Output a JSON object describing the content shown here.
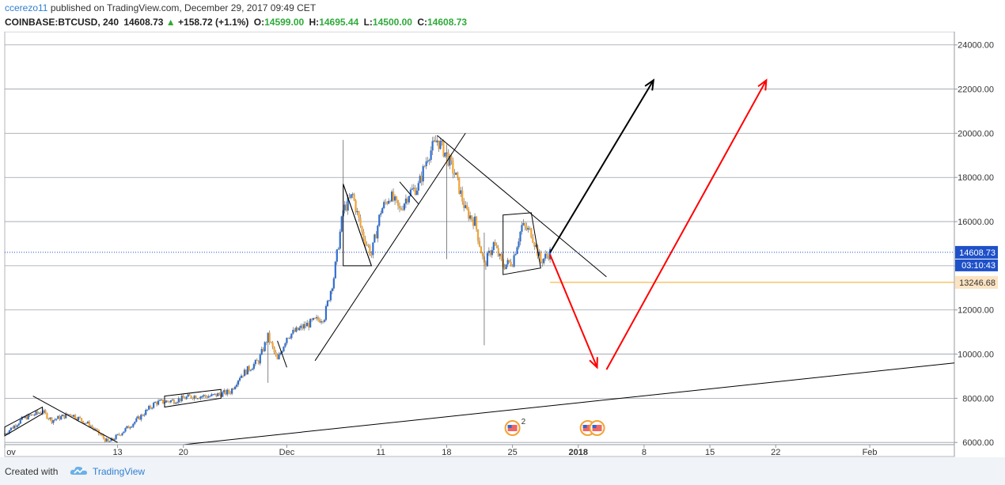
{
  "header": {
    "author": "ccerezo11",
    "published_text": "published on TradingView.com, December 29, 2017 09:49 CET",
    "symbol": "COINBASE:BTCUSD, 240",
    "last": "14608.73",
    "change": "+158.72 (+1.1%)",
    "open_label": "O:",
    "open": "14599.00",
    "high_label": "H:",
    "high": "14695.44",
    "low_label": "L:",
    "low": "14500.00",
    "close_label": "C:",
    "close": "14608.73"
  },
  "footer": {
    "created_with": "Created with",
    "brand": "TradingView"
  },
  "colors": {
    "up": "#2f6fd0",
    "down": "#f2a334",
    "accent": "#2f7fd3",
    "arrow_red": "#ff0000",
    "arrow_black": "#000000",
    "level": "#f5a623",
    "price_tag": "#1e50c8"
  },
  "chart_data": {
    "type": "candlestick",
    "x_axis": {
      "type": "date",
      "range": [
        "2017-11-01",
        "2018-02-10"
      ],
      "ticks": [
        {
          "date": "2017-11-01",
          "label": "ov"
        },
        {
          "date": "2017-11-13",
          "label": "13"
        },
        {
          "date": "2017-11-20",
          "label": "20"
        },
        {
          "date": "2017-12-01",
          "label": "Dec"
        },
        {
          "date": "2017-12-11",
          "label": "11"
        },
        {
          "date": "2017-12-18",
          "label": "18"
        },
        {
          "date": "2017-12-25",
          "label": "25"
        },
        {
          "date": "2018-01-01",
          "label": "2018"
        },
        {
          "date": "2018-01-08",
          "label": "8"
        },
        {
          "date": "2018-01-15",
          "label": "15"
        },
        {
          "date": "2018-01-22",
          "label": "22"
        },
        {
          "date": "2018-02-01",
          "label": "Feb"
        }
      ]
    },
    "y_axis": {
      "range": [
        5900,
        24600
      ],
      "ticks": [
        {
          "value": 6000,
          "label": "6000.00"
        },
        {
          "value": 8000,
          "label": "8000.00"
        },
        {
          "value": 10000,
          "label": "10000.00"
        },
        {
          "value": 12000,
          "label": "12000.00"
        },
        {
          "value": 14000,
          "label": "14000.00"
        },
        {
          "value": 16000,
          "label": "16000.00"
        },
        {
          "value": 18000,
          "label": "18000.00"
        },
        {
          "value": 20000,
          "label": "20000.00"
        },
        {
          "value": 22000,
          "label": "22000.00"
        },
        {
          "value": 24000,
          "label": "24000.00"
        }
      ],
      "grid": true
    },
    "price_path": [
      [
        "2017-11-01",
        6400
      ],
      [
        "2017-11-03",
        7100
      ],
      [
        "2017-11-05",
        7400
      ],
      [
        "2017-11-06",
        7000
      ],
      [
        "2017-11-08",
        7300
      ],
      [
        "2017-11-10",
        6800
      ],
      [
        "2017-11-12",
        6000
      ],
      [
        "2017-11-13",
        6300
      ],
      [
        "2017-11-15",
        7000
      ],
      [
        "2017-11-17",
        7800
      ],
      [
        "2017-11-19",
        7900
      ],
      [
        "2017-11-21",
        8100
      ],
      [
        "2017-11-23",
        8100
      ],
      [
        "2017-11-25",
        8300
      ],
      [
        "2017-11-26",
        9000
      ],
      [
        "2017-11-28",
        9700
      ],
      [
        "2017-11-29",
        10800
      ],
      [
        "2017-11-30",
        9700
      ],
      [
        "2017-12-01",
        10800
      ],
      [
        "2017-12-03",
        11300
      ],
      [
        "2017-12-05",
        11700
      ],
      [
        "2017-12-06",
        13500
      ],
      [
        "2017-12-07",
        16500
      ],
      [
        "2017-12-08",
        17200
      ],
      [
        "2017-12-09",
        15500
      ],
      [
        "2017-12-10",
        14500
      ],
      [
        "2017-12-11",
        16500
      ],
      [
        "2017-12-12",
        17200
      ],
      [
        "2017-12-13",
        16500
      ],
      [
        "2017-12-14",
        17300
      ],
      [
        "2017-12-15",
        17600
      ],
      [
        "2017-12-16",
        19000
      ],
      [
        "2017-12-17",
        19700
      ],
      [
        "2017-12-18",
        19000
      ],
      [
        "2017-12-19",
        18000
      ],
      [
        "2017-12-20",
        16500
      ],
      [
        "2017-12-21",
        16000
      ],
      [
        "2017-12-22",
        14000
      ],
      [
        "2017-12-23",
        15000
      ],
      [
        "2017-12-24",
        14000
      ],
      [
        "2017-12-25",
        14200
      ],
      [
        "2017-12-26",
        15800
      ],
      [
        "2017-12-27",
        15500
      ],
      [
        "2017-12-28",
        14200
      ],
      [
        "2017-12-29",
        14608.73
      ]
    ],
    "wicks": [
      {
        "date": "2017-12-07",
        "high": 19700,
        "low": 16500
      },
      {
        "date": "2017-12-18",
        "high": 19500,
        "low": 14300
      },
      {
        "date": "2017-12-22",
        "high": 15500,
        "low": 10400
      },
      {
        "date": "2017-11-29",
        "high": 10900,
        "low": 8700
      }
    ],
    "drawings": {
      "trendlines": [
        {
          "from": [
            "2017-12-04",
            9700
          ],
          "to": [
            "2017-12-20",
            20000
          ]
        },
        {
          "from": [
            "2017-12-17",
            19900
          ],
          "to": [
            "2018-01-04",
            13500
          ]
        },
        {
          "from": [
            "2017-11-20",
            5900
          ],
          "to": [
            "2018-02-10",
            9600
          ]
        },
        {
          "from": [
            "2017-11-04",
            8100
          ],
          "to": [
            "2017-11-13",
            6000
          ]
        },
        {
          "from": [
            "2017-11-30",
            10600
          ],
          "to": [
            "2017-12-01",
            9400
          ]
        },
        {
          "from": [
            "2017-12-07",
            17700
          ],
          "to": [
            "2017-12-10",
            14000
          ]
        },
        {
          "from": [
            "2017-12-13",
            17800
          ],
          "to": [
            "2017-12-15",
            16800
          ]
        }
      ],
      "channels": [
        {
          "points": [
            [
              "2017-11-01",
              6700
            ],
            [
              "2017-11-05",
              7600
            ],
            [
              "2017-11-05",
              7300
            ],
            [
              "2017-11-01",
              6300
            ]
          ]
        },
        {
          "points": [
            [
              "2017-11-18",
              8100
            ],
            [
              "2017-11-24",
              8400
            ],
            [
              "2017-11-24",
              8000
            ],
            [
              "2017-11-18",
              7600
            ]
          ]
        },
        {
          "points": [
            [
              "2017-12-24",
              16300
            ],
            [
              "2017-12-27",
              16400
            ],
            [
              "2017-12-28",
              13900
            ],
            [
              "2017-12-24",
              13600
            ]
          ]
        },
        {
          "points": [
            [
              "2017-12-07",
              17700
            ],
            [
              "2017-12-07",
              14000
            ],
            [
              "2017-12-10",
              14000
            ]
          ]
        }
      ],
      "arrows": [
        {
          "color": "black",
          "from": [
            "2017-12-29",
            14600
          ],
          "to": [
            "2018-01-09",
            22400
          ]
        },
        {
          "color": "red",
          "from": [
            "2017-12-29",
            14500
          ],
          "to": [
            "2018-01-03",
            9400
          ]
        },
        {
          "color": "red",
          "from": [
            "2018-01-04",
            9300
          ],
          "to": [
            "2018-01-21",
            22400
          ]
        }
      ],
      "horizontal_levels": [
        {
          "value": 13246.68,
          "label": "13246.68",
          "start": "2017-12-29"
        }
      ]
    },
    "last_price": {
      "value": 14608.73,
      "label": "14608.73",
      "countdown": "03:10:43"
    },
    "event_markers": [
      {
        "date": "2017-12-25",
        "count": "2"
      },
      {
        "date": "2018-01-02",
        "count": ""
      },
      {
        "date": "2018-01-03",
        "count": ""
      }
    ]
  }
}
